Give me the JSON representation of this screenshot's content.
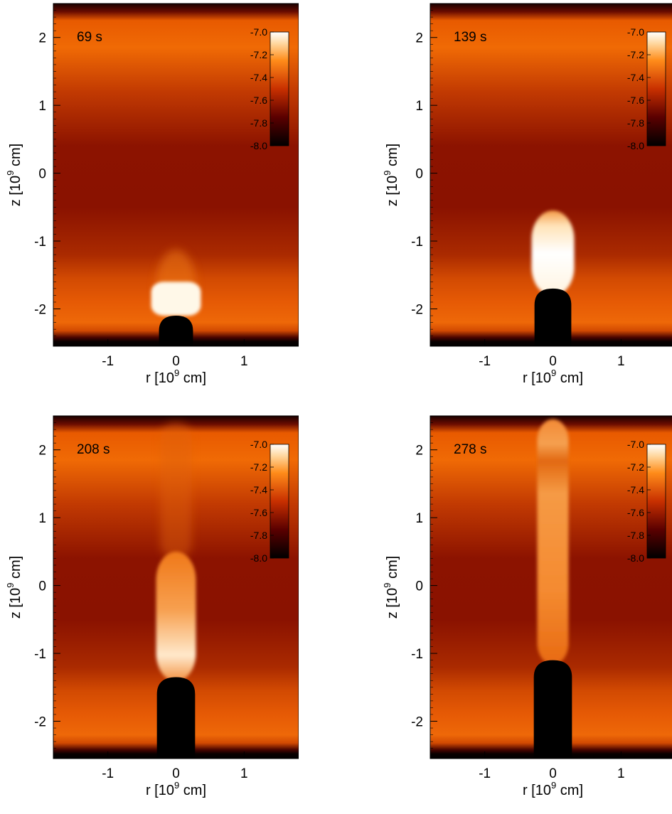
{
  "figure": {
    "colormap": "hot (black-red-orange-white)"
  },
  "chart_data": [
    {
      "type": "heatmap",
      "time_label": "69 s",
      "xlabel": "r [10^9 cm]",
      "ylabel": "z [10^9 cm]",
      "xlim": [
        -1.8,
        1.8
      ],
      "ylim": [
        -2.55,
        2.5
      ],
      "xticks": [
        -1,
        0,
        1
      ],
      "yticks": [
        -2,
        -1,
        0,
        1,
        2
      ],
      "colorbar": {
        "ticks": [
          "-7.0",
          "-7.2",
          "-7.4",
          "-7.6",
          "-7.8",
          "-8.0"
        ],
        "range": [
          -8.0,
          -7.0
        ]
      },
      "jet_tip_z": -1.6,
      "cavity_top_z": -2.1,
      "cavity_halfwidth": 0.25
    },
    {
      "type": "heatmap",
      "time_label": "139 s",
      "xlabel": "r [10^9 cm]",
      "ylabel": "z [10^9 cm]",
      "xlim": [
        -1.8,
        1.8
      ],
      "ylim": [
        -2.55,
        2.5
      ],
      "xticks": [
        -1,
        0,
        1
      ],
      "yticks": [
        -2,
        -1,
        0,
        1,
        2
      ],
      "colorbar": {
        "ticks": [
          "-7.0",
          "-7.2",
          "-7.4",
          "-7.6",
          "-7.8",
          "-8.0"
        ],
        "range": [
          -8.0,
          -7.0
        ]
      },
      "jet_tip_z": -0.55,
      "cavity_top_z": -1.7,
      "cavity_halfwidth": 0.27
    },
    {
      "type": "heatmap",
      "time_label": "208 s",
      "xlabel": "r [10^9 cm]",
      "ylabel": "z [10^9 cm]",
      "xlim": [
        -1.8,
        1.8
      ],
      "ylim": [
        -2.55,
        2.5
      ],
      "xticks": [
        -1,
        0,
        1
      ],
      "yticks": [
        -2,
        -1,
        0,
        1,
        2
      ],
      "colorbar": {
        "ticks": [
          "-7.0",
          "-7.2",
          "-7.4",
          "-7.6",
          "-7.8",
          "-8.0"
        ],
        "range": [
          -8.0,
          -7.0
        ]
      },
      "jet_tip_z": 0.5,
      "cavity_top_z": -1.35,
      "cavity_halfwidth": 0.28
    },
    {
      "type": "heatmap",
      "time_label": "278 s",
      "xlabel": "r [10^9 cm]",
      "ylabel": "z [10^9 cm]",
      "xlim": [
        -1.8,
        1.8
      ],
      "ylim": [
        -2.55,
        2.5
      ],
      "xticks": [
        -1,
        0,
        1
      ],
      "yticks": [
        -2,
        -1,
        0,
        1,
        2
      ],
      "colorbar": {
        "ticks": [
          "-7.0",
          "-7.2",
          "-7.4",
          "-7.6",
          "-7.8",
          "-8.0"
        ],
        "range": [
          -8.0,
          -7.0
        ]
      },
      "jet_tip_z": 2.4,
      "cavity_top_z": -1.1,
      "cavity_halfwidth": 0.28
    }
  ]
}
